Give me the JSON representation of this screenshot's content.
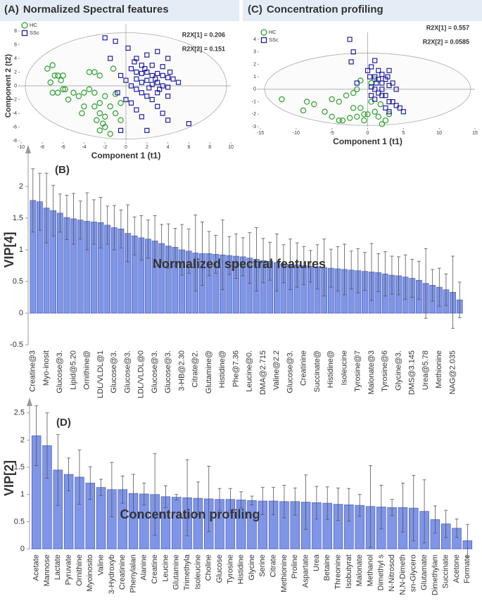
{
  "chart_data": [
    {
      "type": "scatter",
      "label": "(A)",
      "title": "Normalized Spectral features",
      "xlabel": "Component 1 (t1)",
      "ylabel": "Component 2 (t2)",
      "annotations": [
        "R2X[1] = 0.206",
        "R2X[2] = 0.151"
      ],
      "xlim": [
        -10,
        10
      ],
      "xticks": [
        -10,
        -8,
        -6,
        -4,
        -2,
        0,
        2,
        4,
        6,
        8,
        10
      ],
      "ylim": [
        -8,
        8
      ],
      "yticks": [
        -8,
        -6,
        -4,
        -2,
        0,
        2,
        4,
        6,
        8
      ],
      "legend": "top-left",
      "series": [
        {
          "name": "HC",
          "color": "#2ca02c",
          "marker": "circle",
          "x": [
            -7.5,
            -7,
            -6.8,
            -7.2,
            -6.5,
            -6,
            -6.2,
            -5.8,
            -6.5,
            -7,
            -5,
            -5.5,
            -4.5,
            -4,
            -3.5,
            -3,
            -3.5,
            -3,
            -2.5,
            -4,
            -4.2,
            -3,
            -2.5,
            -2,
            -1,
            -2.5,
            -2,
            -2.2,
            -2,
            -1.5,
            -2.5,
            -1,
            -0.5,
            -0.5,
            -1.2,
            -1.5,
            -6,
            -2.8
          ],
          "values": [
            2.5,
            3,
            1.5,
            0.5,
            1.5,
            1.5,
            0.8,
            -0.5,
            -1,
            -1,
            -1,
            -2,
            -1.5,
            -1,
            -0.5,
            -1,
            2,
            2,
            1.5,
            -3,
            -4,
            -3,
            -2.5,
            -1.5,
            -1.2,
            -4,
            -4.5,
            -5.5,
            -6,
            -7,
            -6.5,
            -4,
            -5,
            -2.5,
            2.5,
            -3,
            -0.5,
            -5
          ]
        },
        {
          "name": "SSc",
          "color": "#1f1fa0",
          "marker": "square",
          "x": [
            -2,
            0.2,
            -1,
            1,
            2,
            3,
            4,
            1.5,
            2.5,
            3.5,
            0.5,
            1,
            1.5,
            2,
            2.5,
            3,
            3.5,
            4,
            4.5,
            5,
            1,
            1.5,
            2,
            2.5,
            3,
            3.5,
            4,
            0.5,
            1,
            1.5,
            2,
            2.5,
            3,
            4,
            -0.5,
            0,
            -0.8,
            0,
            0.5,
            1,
            1.5,
            3.5,
            4,
            6,
            -0.5,
            2,
            3,
            1.8,
            2.8,
            3.2,
            -1.5,
            4.2,
            0.8,
            2.2
          ],
          "values": [
            7,
            5.5,
            6.5,
            4,
            4.5,
            5,
            4,
            3,
            3,
            2.8,
            2.5,
            2,
            1.8,
            2,
            1.5,
            1.8,
            1.5,
            1.2,
            1,
            0.5,
            1,
            0.5,
            0.8,
            0.2,
            0.5,
            0,
            -0.2,
            0,
            -0.5,
            -1,
            -1.5,
            -2,
            -1,
            -1.5,
            1.5,
            0.8,
            -1,
            -2,
            -2.5,
            -3.5,
            -4.5,
            -4,
            -5,
            -5.5,
            -6.5,
            -6.5,
            -3,
            2.5,
            1,
            -0.5,
            4,
            2,
            3.5,
            -0.3
          ]
        }
      ]
    },
    {
      "type": "scatter",
      "label": "(C)",
      "title": "Concentration profiling",
      "xlabel": "Component 1 (t1)",
      "ylabel": null,
      "annotations": [
        "R2X[1] = 0.557",
        "R2X[2] = 0.0585"
      ],
      "xlim": [
        -15,
        15
      ],
      "xticks": [
        -15,
        -10,
        -5,
        0,
        5,
        10,
        15
      ],
      "ylim": [
        -3,
        4
      ],
      "yticks": [
        -3,
        -2,
        -1,
        0,
        1,
        2,
        3,
        4
      ],
      "legend": "top-left",
      "series": [
        {
          "name": "HC",
          "color": "#2ca02c",
          "marker": "circle",
          "x": [
            -12,
            -8.5,
            -9,
            -7.5,
            -5,
            -4,
            -3,
            -2,
            -1.5,
            -3.5,
            -4,
            -2.5,
            -2,
            -1,
            -1.5,
            -0.5,
            0,
            0.5,
            1,
            1.5,
            2,
            2.5,
            3,
            1,
            0.5,
            -0.5,
            -5,
            -6,
            1.8,
            -1
          ],
          "values": [
            -0.8,
            -1,
            -1.7,
            -1.2,
            -0.8,
            -1,
            -0.5,
            -0.3,
            0,
            -2.5,
            -2.5,
            -2.3,
            -1.5,
            -1.5,
            -2.2,
            -2,
            -2,
            -1,
            -1.8,
            -2.2,
            -2.8,
            -2.5,
            -2,
            0.8,
            0.5,
            -2.5,
            -2.2,
            -1.8,
            -1.2,
            0.7
          ]
        },
        {
          "name": "SSc",
          "color": "#1f1fa0",
          "marker": "square",
          "x": [
            -2.5,
            -2,
            -2.3,
            1,
            0.5,
            1.5,
            2,
            3,
            0.3,
            1,
            1.5,
            2,
            2.5,
            3,
            3.5,
            4,
            0.5,
            1,
            1.5,
            2,
            2.5,
            3,
            3.5,
            4,
            4.5,
            5,
            1,
            2.5,
            0.5,
            -1.5,
            3,
            2,
            1.2,
            2.8,
            0
          ],
          "values": [
            4,
            3,
            2.2,
            2.3,
            1.8,
            1.5,
            1.2,
            1.5,
            1,
            1,
            0.8,
            0.5,
            0.8,
            0.3,
            0.5,
            0,
            0.2,
            0,
            -0.3,
            -0.5,
            -0.5,
            -1,
            -1,
            -1.3,
            -1.5,
            -1.8,
            -0.8,
            -1.5,
            -0.5,
            0.5,
            -1.8,
            0,
            0.5,
            1,
            1.5
          ]
        }
      ]
    },
    {
      "type": "bar",
      "label": "(B)",
      "ylabel": "VIP[4]",
      "annotation": "Normalized spectral features",
      "color": "#7f95e8",
      "ylim": [
        -0.5,
        2.5
      ],
      "yticks": [
        -0.5,
        0,
        0.5,
        1,
        1.5,
        2
      ],
      "categories": [
        "Creatine@3",
        null,
        "Myo-inosit",
        null,
        "Glucose@3.",
        null,
        "Lipid@5.20",
        null,
        "Ornithine@",
        null,
        "LDL/VLDL@1",
        null,
        "Glucose@3.",
        null,
        "Glucose@3.",
        null,
        "LDL/VLDL@0",
        null,
        "Glucose@3.",
        null,
        "Glucose@3.",
        null,
        "3-HB@2.30",
        null,
        "Citrate@2.",
        null,
        "Glutamine@",
        null,
        "Histidine@",
        null,
        "Phe@7.36",
        null,
        "Leucine@0.",
        null,
        "DMA@2.715",
        null,
        "Valine@2.2",
        null,
        "Glucose@3.",
        null,
        "Creatinine",
        null,
        "Succinate@",
        null,
        "Histidine@",
        null,
        "Isoleucine",
        null,
        "Tyrosine@7",
        null,
        "Malonate@3",
        null,
        "Tyrosine@6",
        null,
        "Glycine@3.",
        null,
        "DMS@3.145",
        null,
        "Urea@5.78",
        null,
        "Methionine",
        null,
        "NAG@2.035",
        null
      ],
      "values": [
        1.78,
        1.76,
        1.66,
        1.62,
        1.58,
        1.51,
        1.49,
        1.47,
        1.45,
        1.44,
        1.43,
        1.39,
        1.35,
        1.33,
        1.26,
        1.22,
        1.19,
        1.17,
        1.14,
        1.1,
        1.06,
        1.04,
        1.0,
        0.98,
        0.95,
        0.94,
        0.94,
        0.93,
        0.92,
        0.91,
        0.9,
        0.89,
        0.87,
        0.85,
        0.83,
        0.82,
        0.8,
        0.78,
        0.77,
        0.76,
        0.75,
        0.74,
        0.73,
        0.72,
        0.71,
        0.7,
        0.69,
        0.68,
        0.67,
        0.66,
        0.65,
        0.64,
        0.62,
        0.6,
        0.59,
        0.57,
        0.55,
        0.52,
        0.47,
        0.44,
        0.41,
        0.37,
        0.33,
        0.21
      ],
      "errors": [
        0.5,
        0.45,
        0.55,
        0.4,
        0.3,
        0.35,
        0.4,
        0.3,
        0.45,
        0.35,
        0.4,
        0.3,
        0.35,
        0.3,
        0.45,
        0.3,
        0.35,
        0.3,
        0.4,
        0.3,
        0.35,
        0.3,
        0.4,
        0.35,
        0.6,
        0.5,
        0.35,
        0.3,
        0.55,
        0.3,
        0.35,
        0.3,
        0.4,
        0.5,
        0.35,
        0.3,
        0.45,
        0.3,
        0.4,
        0.35,
        0.3,
        0.25,
        0.35,
        0.45,
        0.3,
        0.35,
        0.4,
        0.3,
        0.35,
        0.3,
        0.45,
        0.3,
        0.35,
        0.3,
        0.3,
        0.35,
        0.3,
        0.3,
        0.55,
        0.25,
        0.3,
        0.25,
        0.57,
        0.28
      ]
    },
    {
      "type": "bar",
      "label": "(D)",
      "ylabel": "VIP[2]",
      "annotation": "Concentration profiling",
      "color": "#7f95e8",
      "ylim": [
        0,
        2.6
      ],
      "yticks": [
        0,
        0.5,
        1,
        1.5,
        2,
        2.5
      ],
      "categories": [
        "Acetate",
        "Mannose",
        "Lactate",
        "Pyruvate",
        "Ornithine",
        "Myoinosito",
        "Valine",
        "3-Hydroxyb",
        "Creatinine",
        "Phenylalan",
        "Alanine",
        "Creatine",
        "Leucine",
        "Glutamine",
        "Trimethyla",
        "Isoleucine",
        "Choline",
        "Glucose",
        "Tyrosine",
        "Histidine",
        "Glycine",
        "Serine",
        "Citrate",
        "Methionine",
        "Proline",
        "Aspartate",
        "Urea",
        "Betaine",
        "Threonine",
        "Isobutyrat",
        "Malonate",
        "Methanol",
        "Dimethyl s",
        "N-Nitrosod",
        "N,N-Dimeth",
        "sn-Glycero",
        "Glutamate",
        "Dimethylam",
        "Succinate",
        "Acetone",
        "Formate"
      ],
      "values": [
        2.08,
        1.9,
        1.45,
        1.37,
        1.32,
        1.21,
        1.13,
        1.09,
        1.09,
        1.02,
        1.01,
        1.0,
        0.96,
        0.95,
        0.94,
        0.93,
        0.92,
        0.91,
        0.91,
        0.9,
        0.89,
        0.88,
        0.88,
        0.87,
        0.87,
        0.86,
        0.85,
        0.84,
        0.82,
        0.81,
        0.8,
        0.78,
        0.77,
        0.76,
        0.76,
        0.75,
        0.69,
        0.54,
        0.46,
        0.38,
        0.15
      ],
      "errors": [
        0.55,
        0.6,
        0.65,
        0.3,
        0.5,
        0.3,
        0.15,
        0.5,
        0.25,
        0.35,
        0.2,
        0.75,
        0.2,
        0.05,
        0.7,
        0.3,
        0.6,
        0.2,
        0.2,
        0.15,
        0.08,
        0.25,
        0.25,
        0.3,
        0.25,
        0.5,
        0.3,
        0.3,
        0.3,
        0.3,
        0.2,
        0.75,
        0.4,
        0.15,
        0.45,
        0.6,
        0.58,
        0.25,
        0.25,
        0.17,
        0.3
      ]
    }
  ]
}
